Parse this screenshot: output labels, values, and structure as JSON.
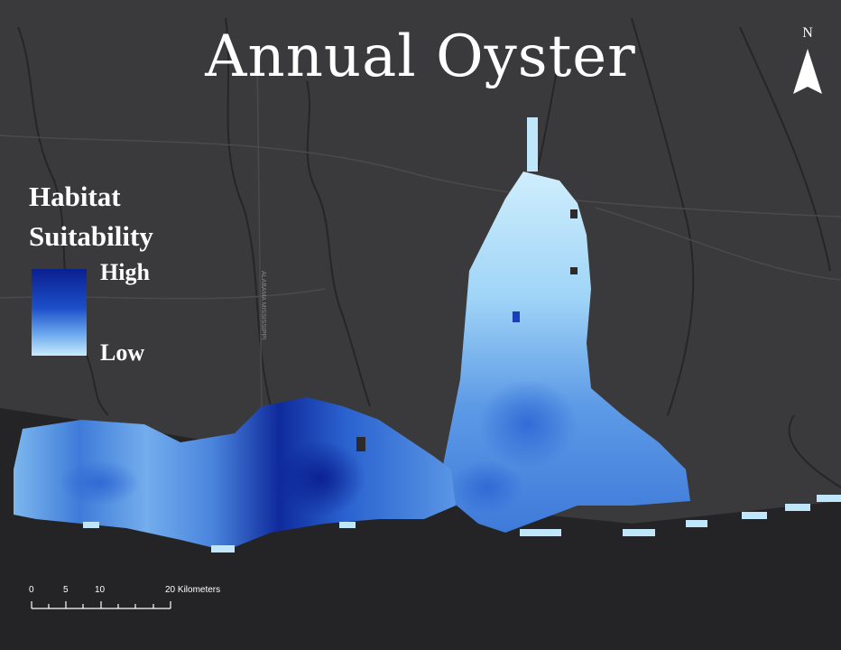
{
  "title": "Annual Oyster",
  "legend": {
    "title_line1": "Habitat",
    "title_line2": "Suitability",
    "high_label": "High",
    "low_label": "Low",
    "ramp_colors": [
      "#0a1f8f",
      "#1c4fc9",
      "#6aa8ee",
      "#c9ecfb"
    ]
  },
  "north_arrow": {
    "label": "N"
  },
  "scale_bar": {
    "ticks": [
      "0",
      "5",
      "10",
      "20 Kilometers"
    ]
  },
  "basemap": {
    "road_label": "ALABAMA MISSISSIPPI",
    "land_color": "#3a3a3c",
    "water_color": "#2a2a2d",
    "sea_color": "#242426"
  }
}
